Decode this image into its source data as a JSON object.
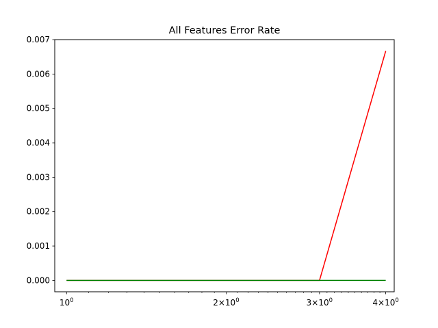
{
  "chart_data": {
    "type": "line",
    "title": "All Features Error Rate",
    "xlabel": "",
    "ylabel": "",
    "xscale": "log",
    "xlim": [
      0.95,
      4.15
    ],
    "ylim": [
      -0.00033,
      0.007
    ],
    "grid": false,
    "legend": "none",
    "x": [
      1,
      2,
      3,
      4
    ],
    "series": [
      {
        "color": "#ff0000",
        "values": [
          0.0,
          0.0,
          0.0,
          0.00667
        ]
      },
      {
        "color": "#008000",
        "values": [
          0.0,
          0.0,
          0.0,
          0.0
        ]
      }
    ],
    "x_ticks": [
      {
        "value": 1,
        "base": "10",
        "exp": "0"
      },
      {
        "value": 2,
        "base": "2×10",
        "exp": "0"
      },
      {
        "value": 3,
        "base": "3×10",
        "exp": "0"
      },
      {
        "value": 4,
        "base": "4×10",
        "exp": "0"
      }
    ],
    "y_ticks": [
      {
        "value": 0.0,
        "label": "0.000"
      },
      {
        "value": 0.001,
        "label": "0.001"
      },
      {
        "value": 0.002,
        "label": "0.002"
      },
      {
        "value": 0.003,
        "label": "0.003"
      },
      {
        "value": 0.004,
        "label": "0.004"
      },
      {
        "value": 0.005,
        "label": "0.005"
      },
      {
        "value": 0.006,
        "label": "0.006"
      },
      {
        "value": 0.007,
        "label": "0.007"
      }
    ]
  }
}
